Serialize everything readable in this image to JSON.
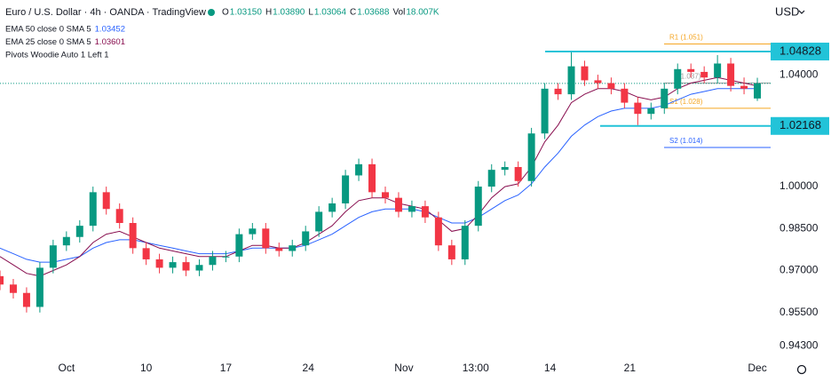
{
  "chart_data": {
    "type": "candlestick",
    "title": "Euro / U.S. Dollar · 4h · OANDA · TradingView",
    "ohlc_header": [
      {
        "key": "O",
        "text": "1.03150"
      },
      {
        "key": "H",
        "text": "1.03890"
      },
      {
        "key": "L",
        "text": "1.03064"
      },
      {
        "key": "C",
        "text": "1.03688"
      },
      {
        "key": "Vol",
        "text": "18.007K"
      }
    ],
    "currency": "USD",
    "indicator_note": "Pivots Woodie Auto 1 Left 1",
    "up_color": "#089981",
    "down_color": "#f23645",
    "xlim": [
      0,
      290
    ],
    "ylim": [
      0.9381,
      1.0667
    ],
    "xticks": [
      {
        "value": 25,
        "label": "Oct"
      },
      {
        "value": 55,
        "label": "10"
      },
      {
        "value": 85,
        "label": "17"
      },
      {
        "value": 116,
        "label": "24"
      },
      {
        "value": 152,
        "label": "Nov"
      },
      {
        "value": 179,
        "label": "13:00"
      },
      {
        "value": 207,
        "label": "14"
      },
      {
        "value": 237,
        "label": "21"
      },
      {
        "value": 285,
        "label": "Dec"
      }
    ],
    "yticks": [
      {
        "value": 0.943,
        "label": "0.94300"
      },
      {
        "value": 0.955,
        "label": "0.95500"
      },
      {
        "value": 0.97,
        "label": "0.97000"
      },
      {
        "value": 0.985,
        "label": "0.98500"
      },
      {
        "value": 1.0,
        "label": "1.00000"
      },
      {
        "value": 1.04,
        "label": "1.04000"
      }
    ],
    "grid": false,
    "x": [
      0,
      5,
      10,
      15,
      20,
      25,
      30,
      35,
      40,
      45,
      50,
      55,
      60,
      65,
      70,
      75,
      80,
      85,
      90,
      95,
      100,
      105,
      110,
      115,
      120,
      125,
      130,
      135,
      140,
      145,
      150,
      155,
      160,
      165,
      170,
      175,
      180,
      185,
      190,
      195,
      200,
      205,
      210,
      215,
      220,
      225,
      230,
      235,
      240,
      245,
      250,
      255,
      260,
      265,
      270,
      275,
      280,
      285
    ],
    "open": [
      0.968,
      0.965,
      0.962,
      0.957,
      0.971,
      0.979,
      0.982,
      0.986,
      0.998,
      0.992,
      0.987,
      0.978,
      0.974,
      0.971,
      0.973,
      0.97,
      0.972,
      0.975,
      0.975,
      0.983,
      0.985,
      0.978,
      0.977,
      0.979,
      0.984,
      0.991,
      0.994,
      1.004,
      1.008,
      0.998,
      0.996,
      0.991,
      0.993,
      0.989,
      0.979,
      0.974,
      0.986,
      1.0,
      1.006,
      1.007,
      1.002,
      1.019,
      1.035,
      1.033,
      1.043,
      1.038,
      1.037,
      1.035,
      1.03,
      1.026,
      1.028,
      1.035,
      1.042,
      1.041,
      1.039,
      1.044,
      1.036,
      1.0315
    ],
    "high": [
      0.97,
      0.967,
      0.964,
      0.973,
      0.981,
      0.984,
      0.988,
      1.0,
      1.0,
      0.994,
      0.989,
      0.98,
      0.976,
      0.975,
      0.975,
      0.974,
      0.977,
      0.977,
      0.985,
      0.987,
      0.987,
      0.98,
      0.981,
      0.986,
      0.993,
      0.996,
      1.006,
      1.01,
      1.01,
      1.0,
      0.998,
      0.995,
      0.995,
      0.991,
      0.981,
      0.988,
      1.002,
      1.008,
      1.009,
      1.009,
      1.021,
      1.037,
      1.037,
      1.048,
      1.045,
      1.04,
      1.039,
      1.037,
      1.032,
      1.03,
      1.037,
      1.044,
      1.044,
      1.043,
      1.047,
      1.046,
      1.039,
      1.0389
    ],
    "low": [
      0.963,
      0.96,
      0.955,
      0.955,
      0.969,
      0.977,
      0.98,
      0.984,
      0.99,
      0.985,
      0.976,
      0.972,
      0.969,
      0.969,
      0.968,
      0.968,
      0.97,
      0.973,
      0.973,
      0.981,
      0.976,
      0.975,
      0.975,
      0.977,
      0.982,
      0.989,
      0.992,
      1.002,
      0.996,
      0.994,
      0.989,
      0.989,
      0.987,
      0.977,
      0.972,
      0.972,
      0.984,
      0.998,
      1.004,
      1.0,
      1.0,
      1.017,
      1.031,
      1.031,
      1.036,
      1.035,
      1.033,
      1.028,
      1.022,
      1.024,
      1.026,
      1.033,
      1.039,
      1.037,
      1.037,
      1.034,
      1.033,
      1.03064
    ],
    "close": [
      0.965,
      0.962,
      0.957,
      0.971,
      0.979,
      0.982,
      0.986,
      0.998,
      0.992,
      0.987,
      0.978,
      0.974,
      0.971,
      0.973,
      0.97,
      0.972,
      0.975,
      0.975,
      0.983,
      0.985,
      0.978,
      0.977,
      0.979,
      0.984,
      0.991,
      0.994,
      1.004,
      1.008,
      0.998,
      0.996,
      0.991,
      0.993,
      0.989,
      0.979,
      0.974,
      0.986,
      1.0,
      1.006,
      1.007,
      1.002,
      1.019,
      1.035,
      1.033,
      1.043,
      1.038,
      1.037,
      1.035,
      1.03,
      1.026,
      1.028,
      1.035,
      1.042,
      1.041,
      1.039,
      1.044,
      1.036,
      1.035,
      1.03688
    ],
    "series": [
      {
        "name": "EMA 50 close 0 SMA 5",
        "last_label": "1.03452",
        "color": "#2962ff",
        "values": [
          0.978,
          0.976,
          0.974,
          0.973,
          0.973,
          0.974,
          0.975,
          0.978,
          0.98,
          0.981,
          0.981,
          0.98,
          0.979,
          0.978,
          0.977,
          0.976,
          0.976,
          0.976,
          0.977,
          0.978,
          0.978,
          0.978,
          0.978,
          0.979,
          0.981,
          0.983,
          0.986,
          0.989,
          0.991,
          0.992,
          0.992,
          0.992,
          0.991,
          0.989,
          0.987,
          0.987,
          0.989,
          0.992,
          0.995,
          0.997,
          1.001,
          1.007,
          1.012,
          1.018,
          1.022,
          1.025,
          1.027,
          1.028,
          1.028,
          1.028,
          1.029,
          1.031,
          1.033,
          1.034,
          1.035,
          1.035,
          1.035,
          1.035
        ]
      },
      {
        "name": "EMA 25 close 0 SMA 5",
        "last_label": "1.03601",
        "color": "#880e4f",
        "values": [
          0.975,
          0.972,
          0.969,
          0.968,
          0.97,
          0.972,
          0.975,
          0.98,
          0.983,
          0.984,
          0.982,
          0.98,
          0.978,
          0.977,
          0.976,
          0.975,
          0.975,
          0.975,
          0.977,
          0.979,
          0.979,
          0.978,
          0.978,
          0.98,
          0.983,
          0.986,
          0.991,
          0.995,
          0.996,
          0.996,
          0.994,
          0.993,
          0.992,
          0.988,
          0.984,
          0.985,
          0.99,
          0.996,
          1.0,
          1.001,
          1.007,
          1.016,
          1.022,
          1.03,
          1.033,
          1.035,
          1.035,
          1.034,
          1.032,
          1.031,
          1.032,
          1.035,
          1.037,
          1.038,
          1.039,
          1.038,
          1.037,
          1.036
        ]
      }
    ],
    "pivots": [
      {
        "label": "R1 (1.051)",
        "value": 1.051,
        "color": "#f5a623"
      },
      {
        "label": "(1.037)",
        "value": 1.037,
        "color": "#9e9e9e"
      },
      {
        "label": "S1 (1.028)",
        "value": 1.028,
        "color": "#f5a623"
      },
      {
        "label": "S2 (1.014)",
        "value": 1.014,
        "color": "#2962ff"
      }
    ],
    "levels": [
      1.04828,
      1.02168
    ],
    "level_color": "#22c3d8"
  }
}
